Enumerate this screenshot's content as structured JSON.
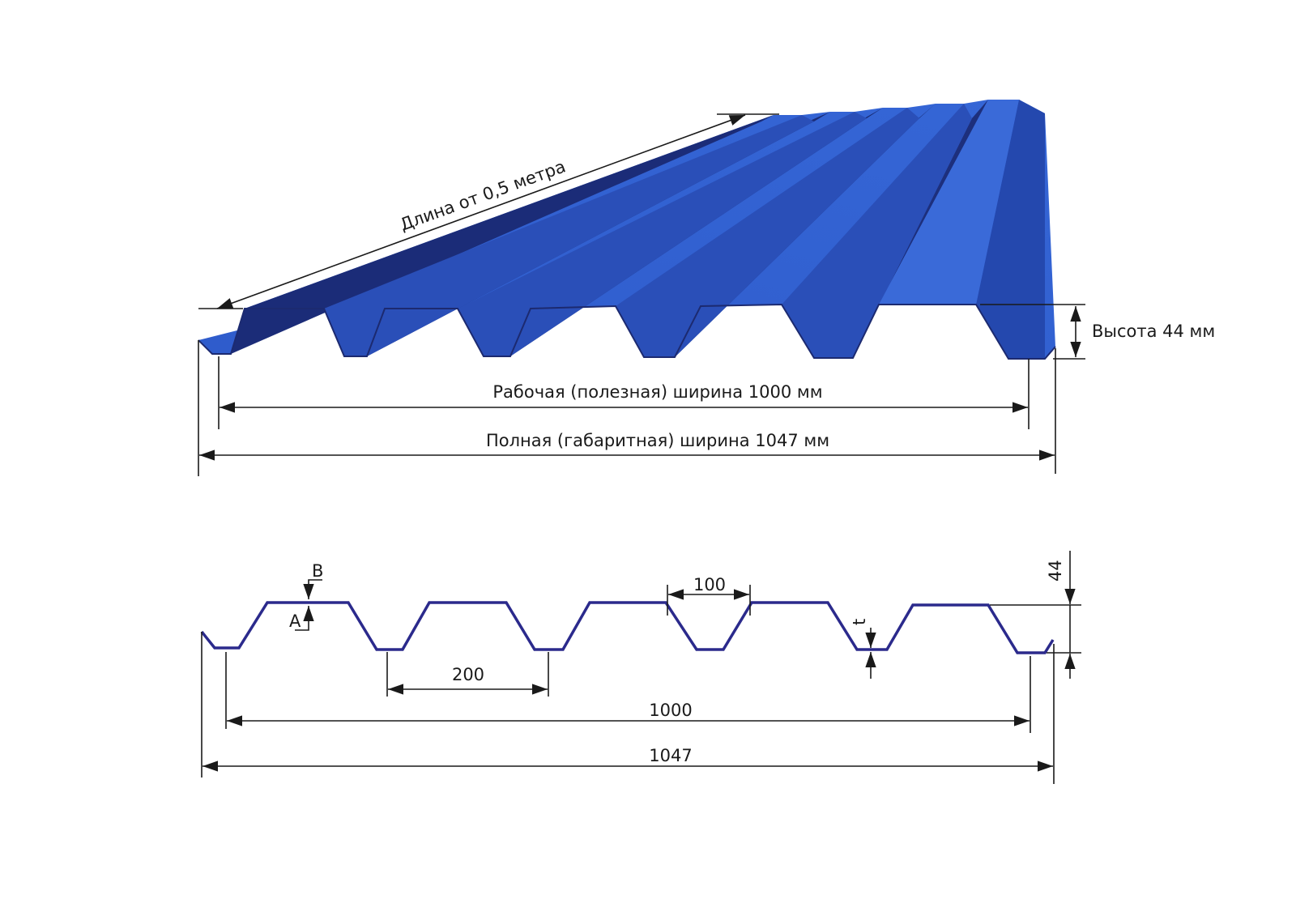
{
  "sheet_3d": {
    "length_label": "Длина от 0,5 метра",
    "height_label": "Высота 44 мм",
    "working_width_label": "Рабочая (полезная) ширина 1000 мм",
    "full_width_label": "Полная (габаритная) ширина 1047 мм",
    "color": "#2f58c8"
  },
  "profile": {
    "label_b": "B",
    "label_a": "A",
    "label_t": "t",
    "pitch": "200",
    "bottom_width": "100",
    "height": "44",
    "working_width": "1000",
    "full_width": "1047",
    "color": "#2b2a8c"
  }
}
